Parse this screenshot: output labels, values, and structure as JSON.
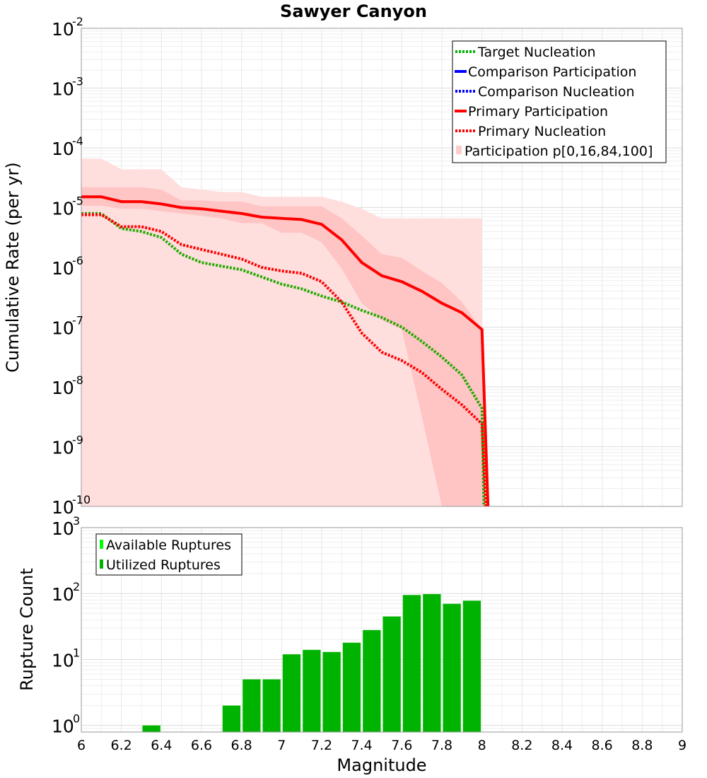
{
  "chart_data": [
    {
      "type": "line",
      "title": "Sawyer Canyon",
      "xlabel": "",
      "ylabel": "Cumulative Rate (per yr)",
      "xlim": [
        6,
        9
      ],
      "ylim_log10": [
        -10,
        -2
      ],
      "y_ticks": [
        {
          "base": "10",
          "exp": "-2"
        },
        {
          "base": "10",
          "exp": "-3"
        },
        {
          "base": "10",
          "exp": "-4"
        },
        {
          "base": "10",
          "exp": "-5"
        },
        {
          "base": "10",
          "exp": "-6"
        },
        {
          "base": "10",
          "exp": "-7"
        },
        {
          "base": "10",
          "exp": "-8"
        },
        {
          "base": "10",
          "exp": "-9"
        },
        {
          "base": "10",
          "exp": "-10"
        }
      ],
      "legend": [
        {
          "label": "Target Nucleation",
          "color": "#00b300",
          "style": "dotted"
        },
        {
          "label": "Comparison Participation",
          "color": "#0000ff",
          "style": "solid"
        },
        {
          "label": "Comparison Nucleation",
          "color": "#0000ff",
          "style": "dotted"
        },
        {
          "label": "Primary Participation",
          "color": "#ff0000",
          "style": "solid"
        },
        {
          "label": "Primary Nucleation",
          "color": "#ff0000",
          "style": "dotted"
        },
        {
          "label": "Participation p[0,16,84,100]",
          "color": "#ffcccc",
          "style": "box"
        }
      ],
      "legend_position": "top-right",
      "band_outer": {
        "color": "#ffdede",
        "x": [
          6.0,
          6.1,
          6.2,
          6.3,
          6.4,
          6.5,
          6.6,
          6.7,
          6.8,
          6.9,
          7.0,
          7.1,
          7.2,
          7.3,
          7.4,
          7.5,
          7.6,
          7.7,
          7.8,
          7.9,
          8.0
        ],
        "upper": [
          -4.18,
          -4.18,
          -4.36,
          -4.36,
          -4.36,
          -4.66,
          -4.7,
          -4.74,
          -4.74,
          -4.82,
          -4.82,
          -4.82,
          -4.82,
          -4.9,
          -5.02,
          -5.18,
          -5.18,
          -5.18,
          -5.18,
          -5.18,
          -5.18
        ],
        "lower": [
          -10,
          -10,
          -10,
          -10,
          -10,
          -10,
          -10,
          -10,
          -10,
          -10,
          -10,
          -10,
          -10,
          -10,
          -10,
          -10,
          -10,
          -10,
          -10,
          -10,
          -10
        ]
      },
      "band_inner": {
        "color": "#ffc4c4",
        "x": [
          6.0,
          6.1,
          6.2,
          6.3,
          6.4,
          6.5,
          6.6,
          6.7,
          6.8,
          6.9,
          7.0,
          7.1,
          7.2,
          7.3,
          7.4,
          7.5,
          7.6,
          7.7,
          7.8,
          7.9,
          8.0,
          8.03
        ],
        "upper": [
          -4.66,
          -4.66,
          -4.66,
          -4.66,
          -4.7,
          -4.88,
          -4.88,
          -4.9,
          -4.9,
          -4.98,
          -4.98,
          -4.98,
          -4.98,
          -5.18,
          -5.47,
          -5.78,
          -5.84,
          -6.06,
          -6.26,
          -6.58,
          -7.04,
          -10
        ],
        "lower": [
          -4.97,
          -4.97,
          -5.02,
          -5.02,
          -5.06,
          -5.1,
          -5.14,
          -5.18,
          -5.26,
          -5.26,
          -5.42,
          -5.42,
          -5.58,
          -6.02,
          -6.6,
          -6.88,
          -7.04,
          -8.5,
          -10,
          -10,
          -10,
          -10
        ]
      },
      "series": [
        {
          "name": "Target Nucleation",
          "color": "#22aa00",
          "style": "dotted",
          "x": [
            6.0,
            6.1,
            6.2,
            6.3,
            6.4,
            6.5,
            6.6,
            6.7,
            6.8,
            6.9,
            7.0,
            7.1,
            7.2,
            7.3,
            7.4,
            7.5,
            7.6,
            7.7,
            7.8,
            7.9,
            8.0,
            8.01
          ],
          "y": [
            -5.1,
            -5.1,
            -5.35,
            -5.4,
            -5.5,
            -5.78,
            -5.92,
            -5.98,
            -6.04,
            -6.16,
            -6.28,
            -6.36,
            -6.48,
            -6.58,
            -6.72,
            -6.84,
            -7.0,
            -7.24,
            -7.5,
            -7.8,
            -8.36,
            -10
          ]
        },
        {
          "name": "Primary Participation",
          "color": "#ff0000",
          "style": "solid",
          "x": [
            6.0,
            6.1,
            6.2,
            6.3,
            6.4,
            6.5,
            6.6,
            6.7,
            6.8,
            6.9,
            7.0,
            7.1,
            7.2,
            7.3,
            7.4,
            7.5,
            7.6,
            7.7,
            7.8,
            7.9,
            8.0,
            8.03
          ],
          "y": [
            -4.82,
            -4.82,
            -4.9,
            -4.9,
            -4.94,
            -5.0,
            -5.02,
            -5.06,
            -5.1,
            -5.16,
            -5.18,
            -5.2,
            -5.28,
            -5.54,
            -5.92,
            -6.14,
            -6.24,
            -6.4,
            -6.6,
            -6.76,
            -7.04,
            -10
          ]
        },
        {
          "name": "Primary Nucleation",
          "color": "#ff0000",
          "style": "dotted",
          "x": [
            6.0,
            6.1,
            6.2,
            6.3,
            6.4,
            6.5,
            6.6,
            6.7,
            6.8,
            6.9,
            7.0,
            7.1,
            7.2,
            7.3,
            7.4,
            7.5,
            7.6,
            7.7,
            7.8,
            7.9,
            8.0,
            8.02
          ],
          "y": [
            -5.12,
            -5.12,
            -5.32,
            -5.32,
            -5.4,
            -5.62,
            -5.7,
            -5.78,
            -5.86,
            -6.0,
            -6.06,
            -6.1,
            -6.24,
            -6.58,
            -7.1,
            -7.42,
            -7.56,
            -7.76,
            -8.04,
            -8.3,
            -8.62,
            -10
          ]
        }
      ]
    },
    {
      "type": "bar",
      "title": "",
      "xlabel": "Magnitude",
      "ylabel": "Rupture Count",
      "xlim": [
        6,
        9
      ],
      "ylim_log10": [
        -0.1,
        3
      ],
      "y_ticks": [
        {
          "base": "10",
          "exp": "3"
        },
        {
          "base": "10",
          "exp": "2"
        },
        {
          "base": "10",
          "exp": "1"
        },
        {
          "base": "10",
          "exp": "0"
        }
      ],
      "x_ticks": [
        "6",
        "6.2",
        "6.4",
        "6.6",
        "6.8",
        "7",
        "7.2",
        "7.4",
        "7.6",
        "7.8",
        "8",
        "8.2",
        "8.4",
        "8.6",
        "8.8",
        "9"
      ],
      "legend": [
        {
          "label": "Available Ruptures",
          "color": "#00ff00"
        },
        {
          "label": "Utilized Ruptures",
          "color": "#00b300"
        }
      ],
      "legend_position": "top-left",
      "bin_width": 0.1,
      "bar_color": "#00b300",
      "bins": [
        6.35,
        6.75,
        6.85,
        6.95,
        7.05,
        7.15,
        7.25,
        7.35,
        7.45,
        7.55,
        7.65,
        7.75,
        7.85,
        7.95
      ],
      "values": [
        1,
        2,
        5,
        5,
        12,
        14,
        13,
        18,
        28,
        45,
        95,
        98,
        70,
        78
      ]
    }
  ]
}
